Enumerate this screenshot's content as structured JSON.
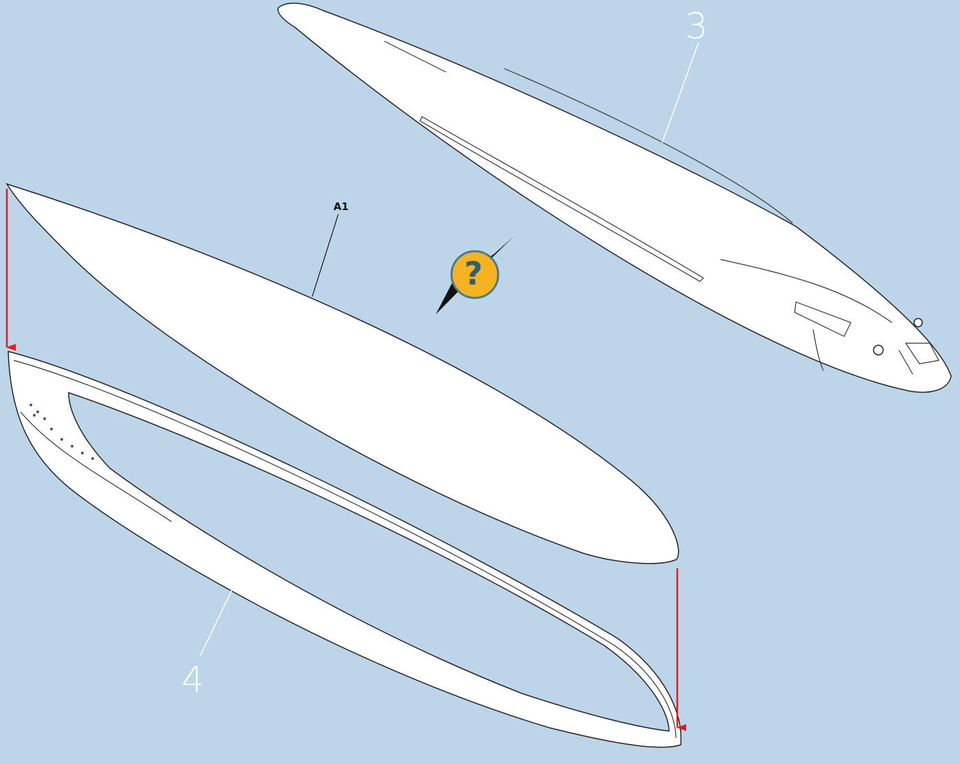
{
  "callouts": [
    {
      "label": "3"
    },
    {
      "label": "A1"
    },
    {
      "label": "4"
    }
  ],
  "icon": {
    "label": "?"
  }
}
